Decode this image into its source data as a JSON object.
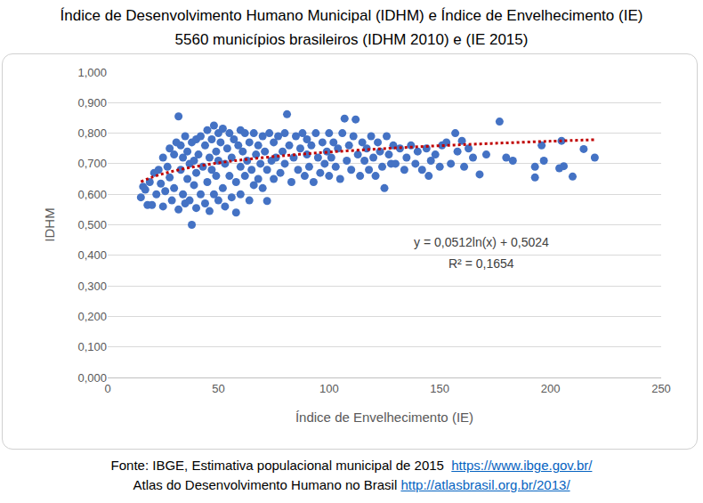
{
  "chart_data": {
    "type": "scatter",
    "title": "Índice de Desenvolvimento Humano Municipal (IDHM) e Índice de Envelhecimento (IE)",
    "subtitle": "5560 municípios brasileiros (IDHM 2010) e (IE 2015)",
    "x_label": "Índice de Envelhecimento (IE)",
    "y_label": "IDHM",
    "xlim": [
      0,
      250
    ],
    "xticks": [
      0,
      50,
      100,
      150,
      200,
      250
    ],
    "ylim": [
      0,
      1
    ],
    "yticks": [
      {
        "value": 0,
        "label": "0,000"
      },
      {
        "value": 0.1,
        "label": "0,100"
      },
      {
        "value": 0.2,
        "label": "0,200"
      },
      {
        "value": 0.3,
        "label": "0,300"
      },
      {
        "value": 0.4,
        "label": "0,400"
      },
      {
        "value": 0.5,
        "label": "0,500"
      },
      {
        "value": 0.6,
        "label": "0,600"
      },
      {
        "value": 0.7,
        "label": "0,700"
      },
      {
        "value": 0.8,
        "label": "0,800"
      },
      {
        "value": 0.9,
        "label": "0,900"
      },
      {
        "value": 1,
        "label": "1,000"
      }
    ],
    "grid": true,
    "series": [
      {
        "type": "scatter",
        "color": "#4472c4",
        "marker": "circle",
        "x": [
          15,
          16,
          17,
          18,
          19,
          20,
          21,
          22,
          23,
          24,
          25,
          25,
          26,
          27,
          28,
          28,
          29,
          30,
          30,
          31,
          32,
          32,
          33,
          33,
          34,
          34,
          35,
          35,
          36,
          36,
          37,
          37,
          38,
          38,
          39,
          39,
          40,
          40,
          40,
          41,
          42,
          42,
          43,
          44,
          44,
          45,
          45,
          46,
          46,
          47,
          47,
          48,
          48,
          49,
          49,
          50,
          50,
          50,
          51,
          52,
          52,
          53,
          53,
          54,
          55,
          55,
          56,
          56,
          57,
          58,
          58,
          59,
          60,
          60,
          60,
          61,
          62,
          62,
          63,
          64,
          64,
          65,
          66,
          66,
          67,
          68,
          68,
          69,
          70,
          70,
          71,
          72,
          72,
          73,
          74,
          75,
          75,
          76,
          77,
          78,
          79,
          80,
          80,
          81,
          82,
          83,
          84,
          85,
          86,
          87,
          88,
          89,
          90,
          90,
          91,
          92,
          93,
          94,
          95,
          96,
          97,
          98,
          99,
          100,
          100,
          101,
          102,
          103,
          104,
          105,
          106,
          107,
          108,
          109,
          110,
          111,
          112,
          113,
          114,
          115,
          116,
          117,
          118,
          119,
          120,
          121,
          122,
          123,
          124,
          125,
          126,
          127,
          128,
          129,
          130,
          132,
          134,
          135,
          137,
          139,
          140,
          142,
          144,
          145,
          146,
          148,
          150,
          151,
          153,
          155,
          157,
          158,
          160,
          161,
          163,
          165,
          168,
          171,
          177,
          180,
          183,
          193,
          193,
          196,
          197,
          204,
          205,
          206,
          210,
          215,
          220
        ],
        "values": [
          0.59,
          0.625,
          0.615,
          0.565,
          0.64,
          0.565,
          0.67,
          0.6,
          0.68,
          0.635,
          0.56,
          0.72,
          0.61,
          0.69,
          0.655,
          0.75,
          0.58,
          0.73,
          0.62,
          0.77,
          0.855,
          0.55,
          0.68,
          0.76,
          0.6,
          0.72,
          0.79,
          0.57,
          0.65,
          0.74,
          0.7,
          0.58,
          0.5,
          0.77,
          0.63,
          0.71,
          0.555,
          0.78,
          0.67,
          0.73,
          0.6,
          0.79,
          0.69,
          0.57,
          0.76,
          0.64,
          0.81,
          0.72,
          0.545,
          0.68,
          0.78,
          0.6,
          0.825,
          0.74,
          0.66,
          0.8,
          0.58,
          0.71,
          0.77,
          0.62,
          0.815,
          0.7,
          0.56,
          0.75,
          0.66,
          0.8,
          0.72,
          0.59,
          0.78,
          0.64,
          0.54,
          0.76,
          0.69,
          0.81,
          0.6,
          0.74,
          0.66,
          0.8,
          0.71,
          0.58,
          0.77,
          0.68,
          0.8,
          0.63,
          0.73,
          0.76,
          0.65,
          0.7,
          0.79,
          0.62,
          0.74,
          0.578,
          0.68,
          0.8,
          0.71,
          0.65,
          0.77,
          0.72,
          0.79,
          0.67,
          0.74,
          0.8,
          0.7,
          0.862,
          0.76,
          0.64,
          0.72,
          0.79,
          0.68,
          0.75,
          0.8,
          0.66,
          0.73,
          0.78,
          0.69,
          0.76,
          0.64,
          0.8,
          0.72,
          0.67,
          0.77,
          0.7,
          0.74,
          0.8,
          0.66,
          0.72,
          0.77,
          0.69,
          0.75,
          0.65,
          0.8,
          0.848,
          0.71,
          0.76,
          0.68,
          0.79,
          0.845,
          0.73,
          0.66,
          0.77,
          0.71,
          0.75,
          0.68,
          0.79,
          0.72,
          0.66,
          0.77,
          0.74,
          0.69,
          0.62,
          0.79,
          0.73,
          0.7,
          0.76,
          0.7,
          0.75,
          0.68,
          0.72,
          0.76,
          0.7,
          0.74,
          0.68,
          0.75,
          0.66,
          0.71,
          0.73,
          0.69,
          0.76,
          0.77,
          0.7,
          0.8,
          0.74,
          0.775,
          0.69,
          0.75,
          0.72,
          0.665,
          0.73,
          0.838,
          0.72,
          0.71,
          0.655,
          0.69,
          0.76,
          0.71,
          0.685,
          0.775,
          0.692,
          0.658,
          0.748,
          0.72
        ]
      },
      {
        "type": "line",
        "color": "#c00000",
        "line_style": "dotted",
        "x": [
          15,
          20,
          25,
          30,
          35,
          40,
          50,
          60,
          80,
          100,
          125,
          150,
          175,
          200,
          220
        ],
        "values": [
          0.6411,
          0.6558,
          0.6672,
          0.6765,
          0.6844,
          0.6913,
          0.7027,
          0.712,
          0.7268,
          0.7382,
          0.7496,
          0.759,
          0.7668,
          0.7737,
          0.7786
        ]
      }
    ],
    "annotations": [
      "y = 0,0512ln(x) + 0,5024",
      "R² = 0,1654"
    ],
    "source": [
      {
        "text": "Fonte: IBGE, Estimativa populacional municipal de 2015",
        "link": "https://www.ibge.gov.br/"
      },
      {
        "text": "Atlas do Desenvolvimento Humano no Brasil",
        "link": "http://atlasbrasil.org.br/2013/"
      }
    ]
  }
}
